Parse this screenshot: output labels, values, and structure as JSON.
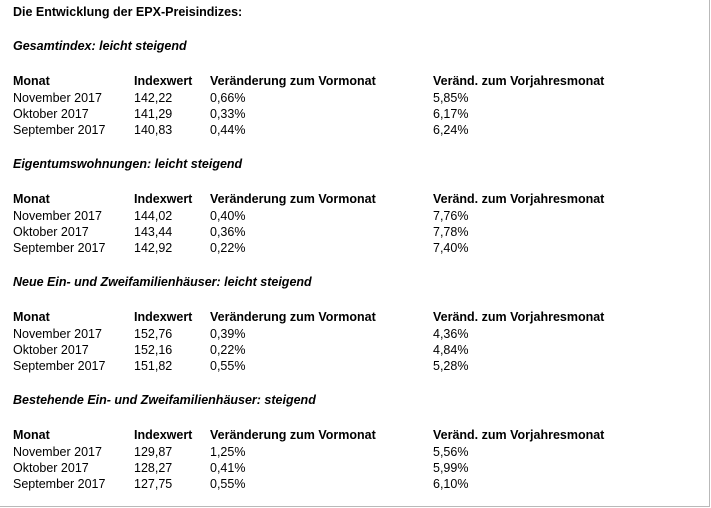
{
  "page_title": "Die Entwicklung der EPX-Preisindizes:",
  "columns": [
    "Monat",
    "Indexwert",
    "Veränderung zum Vormonat",
    "Veränd. zum Vorjahresmonat"
  ],
  "sections": [
    {
      "title": "Gesamtindex: leicht steigend",
      "rows": [
        [
          "November 2017",
          "142,22",
          "0,66%",
          "5,85%"
        ],
        [
          "Oktober 2017",
          "141,29",
          "0,33%",
          "6,17%"
        ],
        [
          "September 2017",
          "140,83",
          "0,44%",
          "6,24%"
        ]
      ]
    },
    {
      "title": "Eigentumswohnungen: leicht steigend",
      "rows": [
        [
          "November 2017",
          "144,02",
          "0,40%",
          "7,76%"
        ],
        [
          "Oktober 2017",
          "143,44",
          "0,36%",
          "7,78%"
        ],
        [
          "September 2017",
          "142,92",
          "0,22%",
          "7,40%"
        ]
      ]
    },
    {
      "title": "Neue Ein- und Zweifamilienhäuser: leicht steigend",
      "rows": [
        [
          "November 2017",
          "152,76",
          "0,39%",
          "4,36%"
        ],
        [
          "Oktober 2017",
          "152,16",
          "0,22%",
          "4,84%"
        ],
        [
          "September 2017",
          "151,82",
          "0,55%",
          "5,28%"
        ]
      ]
    },
    {
      "title": "Bestehende Ein- und Zweifamilienhäuser: steigend",
      "rows": [
        [
          "November 2017",
          "129,87",
          "1,25%",
          "5,56%"
        ],
        [
          "Oktober 2017",
          "128,27",
          "0,41%",
          "5,99%"
        ],
        [
          "September 2017",
          "127,75",
          "0,55%",
          "6,10%"
        ]
      ]
    }
  ]
}
